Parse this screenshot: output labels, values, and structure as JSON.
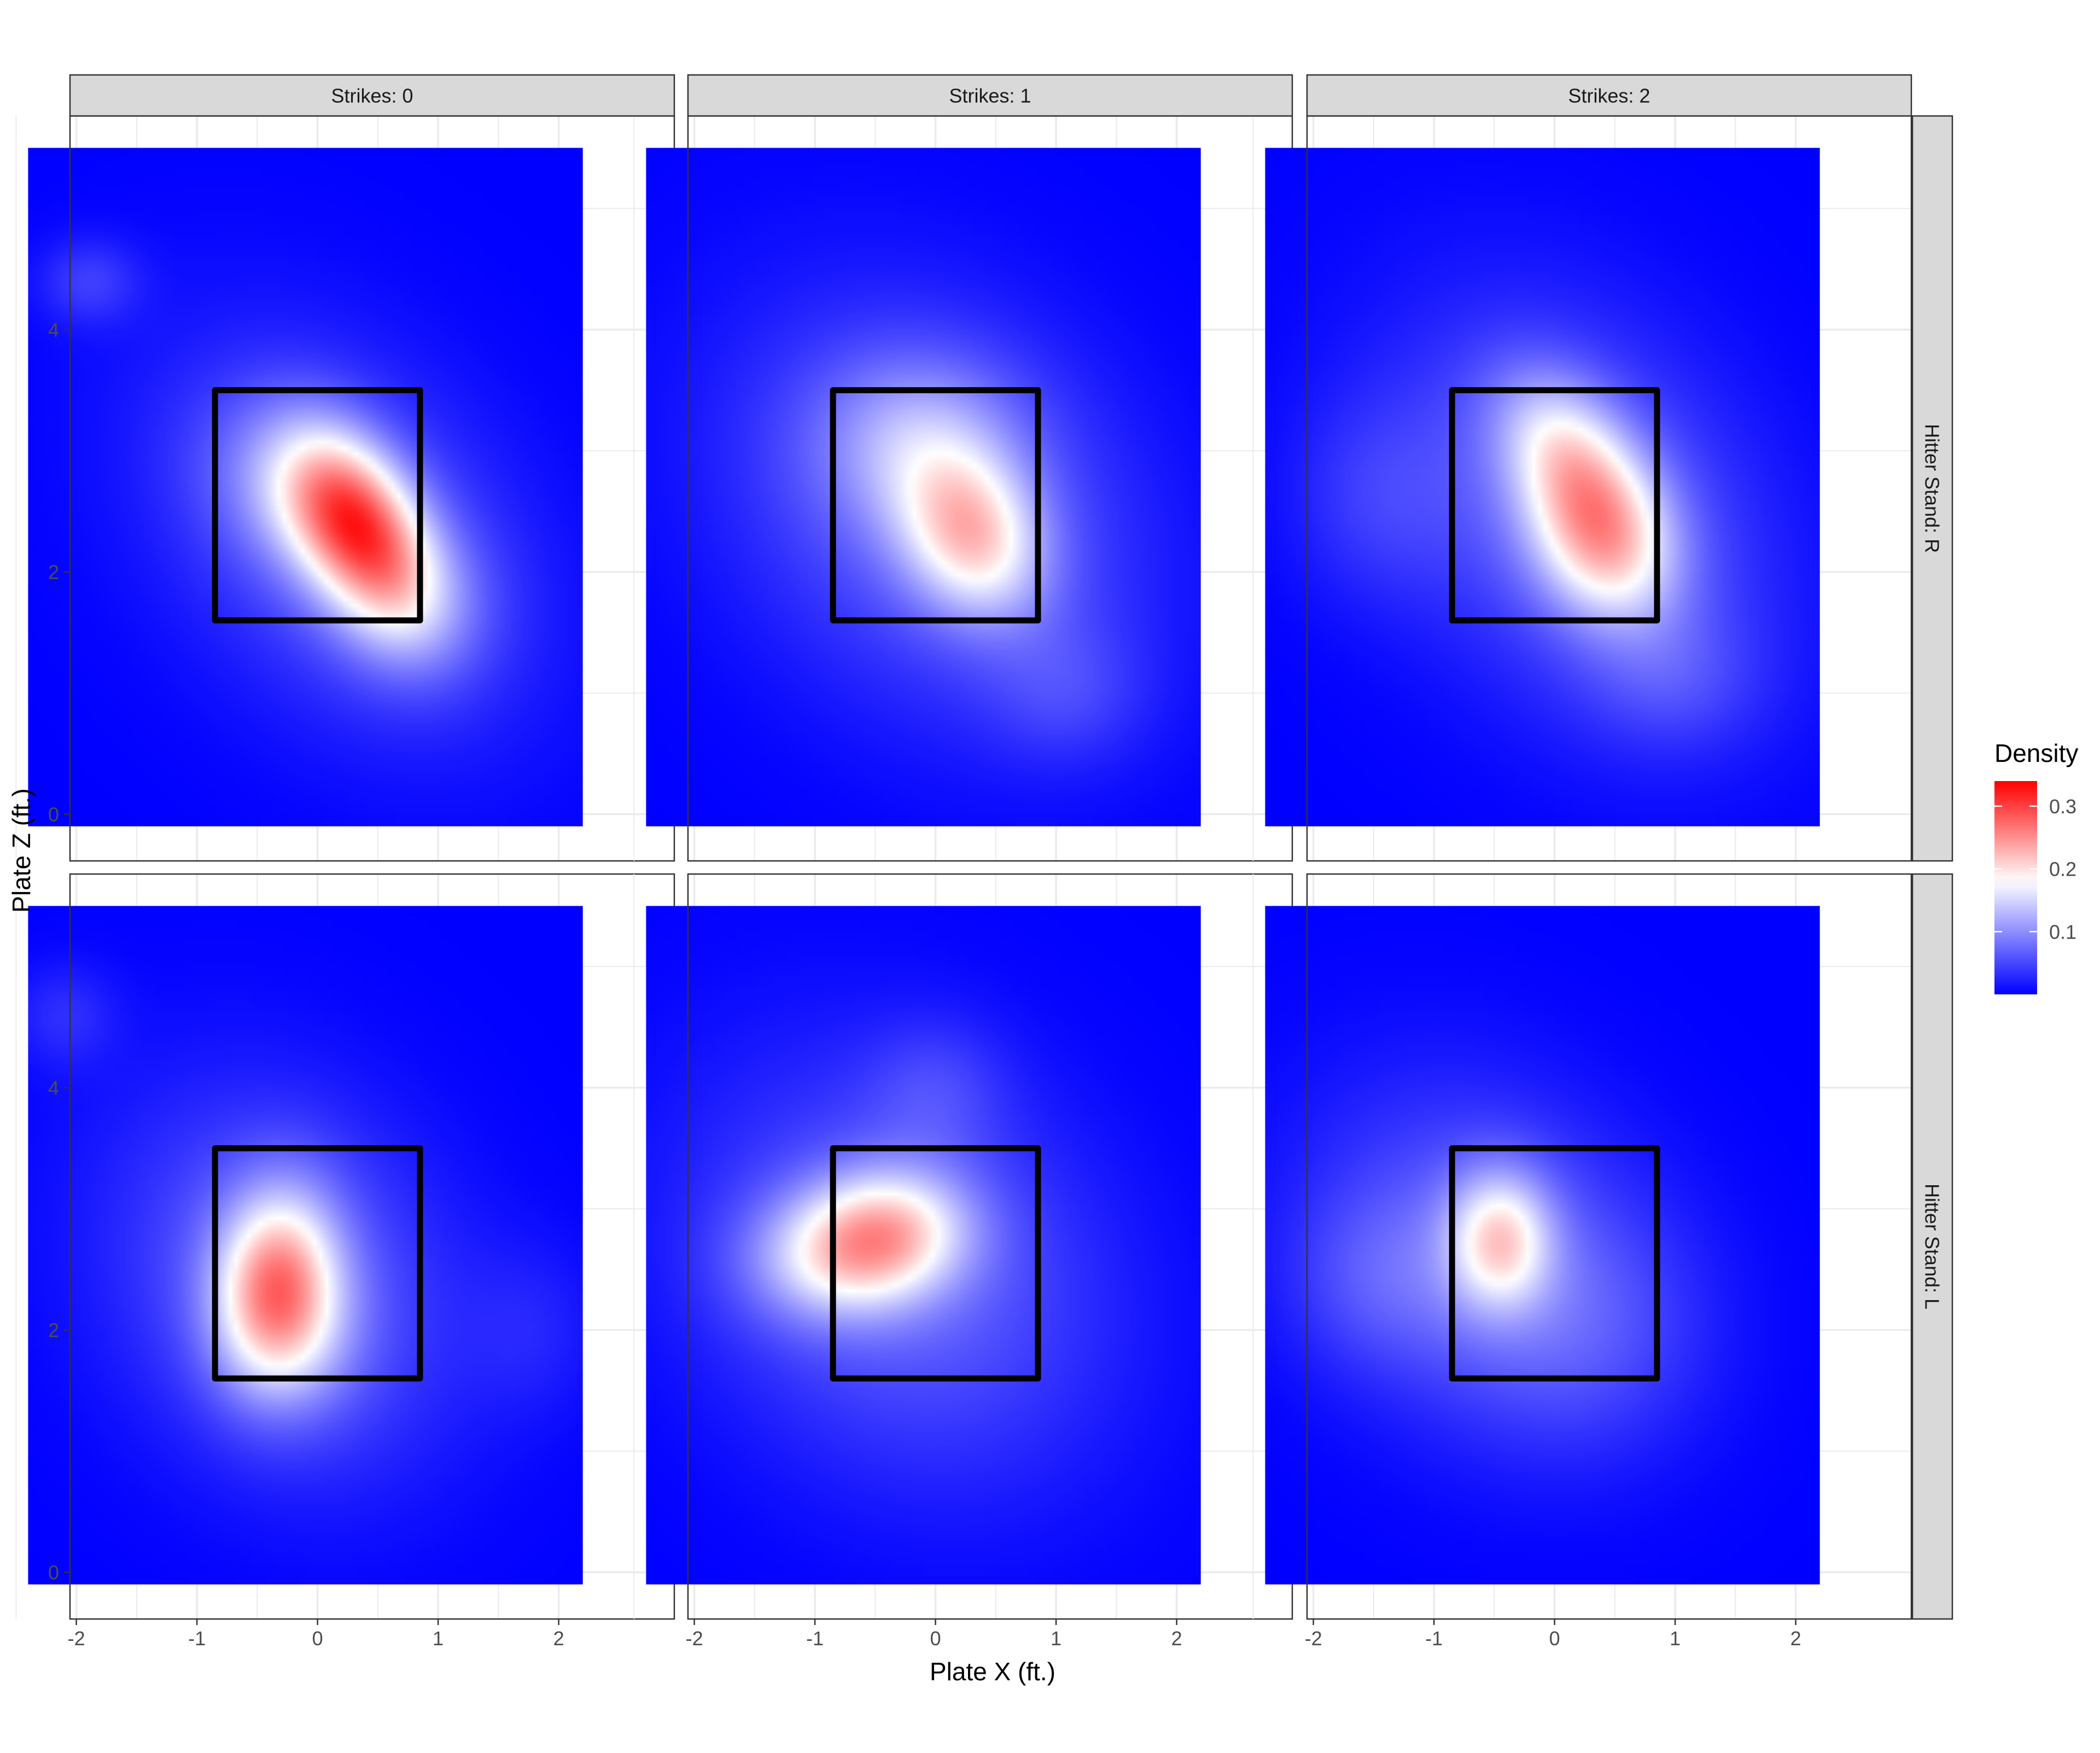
{
  "chart_data": {
    "type": "heatmap",
    "title": "",
    "xlabel": "Plate X (ft.)",
    "ylabel": "Plate Z (ft.)",
    "xlim": [
      -2.4,
      2.2
    ],
    "ylim": [
      -0.1,
      5.5
    ],
    "x_ticks": [
      -2,
      -1,
      0,
      1,
      2
    ],
    "x_tick_labels": [
      "-2",
      "-1",
      "0",
      "1",
      "2"
    ],
    "y_ticks": [
      0,
      2,
      4
    ],
    "y_tick_labels": [
      "0",
      "2",
      "4"
    ],
    "grid": true,
    "facet_columns": [
      "Strikes: 0",
      "Strikes: 1",
      "Strikes: 2"
    ],
    "facet_rows": [
      "Hitter Stand: R",
      "Hitter Stand: L"
    ],
    "strike_zone": {
      "x": [
        -0.85,
        0.85
      ],
      "z": [
        1.6,
        3.5
      ]
    },
    "legend": {
      "title": "Density",
      "position": "right",
      "ticks": [
        0.1,
        0.2,
        0.3
      ],
      "tick_labels": [
        "0.1",
        "0.2",
        "0.3"
      ],
      "range": [
        0.0,
        0.34
      ],
      "colors": {
        "low": "#0000ff",
        "mid": "#ffffff",
        "high": "#ff0000"
      },
      "midpoint": 0.18
    },
    "colors": {
      "strip_fill": "#d9d9d9",
      "panel_border": "#333333",
      "grid": "#ebebeb",
      "zone_line": "#000000"
    },
    "panels": [
      {
        "row": "Hitter Stand: R",
        "col": "Strikes: 0",
        "peak_density": 0.33,
        "hotspots": [
          {
            "x": 0.35,
            "z": 2.35,
            "sx": 0.42,
            "sz": 0.55,
            "rho": -0.45,
            "w": 0.2
          },
          {
            "x": -0.05,
            "z": 2.6,
            "sx": 0.55,
            "sz": 0.5,
            "rho": -0.3,
            "w": 0.08
          },
          {
            "x": 0.8,
            "z": 1.7,
            "sx": 0.45,
            "sz": 0.45,
            "rho": 0,
            "w": 0.05
          },
          {
            "x": 0.2,
            "z": 2.3,
            "sx": 1.1,
            "sz": 1.15,
            "rho": -0.35,
            "w": 0.06
          },
          {
            "x": -1.9,
            "z": 4.4,
            "sx": 0.3,
            "sz": 0.25,
            "rho": 0,
            "w": 0.04
          }
        ]
      },
      {
        "row": "Hitter Stand: R",
        "col": "Strikes: 1",
        "peak_density": 0.27,
        "hotspots": [
          {
            "x": 0.3,
            "z": 2.3,
            "sx": 0.42,
            "sz": 0.48,
            "rho": -0.2,
            "w": 0.15
          },
          {
            "x": -0.15,
            "z": 3.1,
            "sx": 0.6,
            "sz": 0.5,
            "rho": 0,
            "w": 0.07
          },
          {
            "x": 0.0,
            "z": 2.5,
            "sx": 1.2,
            "sz": 1.2,
            "rho": -0.25,
            "w": 0.07
          },
          {
            "x": 1.1,
            "z": 1.0,
            "sx": 0.45,
            "sz": 0.4,
            "rho": 0,
            "w": 0.03
          }
        ]
      },
      {
        "row": "Hitter Stand: R",
        "col": "Strikes: 2",
        "peak_density": 0.3,
        "hotspots": [
          {
            "x": 0.4,
            "z": 2.3,
            "sx": 0.42,
            "sz": 0.5,
            "rho": -0.2,
            "w": 0.17
          },
          {
            "x": 0.05,
            "z": 3.05,
            "sx": 0.4,
            "sz": 0.45,
            "rho": -0.3,
            "w": 0.1
          },
          {
            "x": 0.2,
            "z": 2.5,
            "sx": 1.1,
            "sz": 1.2,
            "rho": -0.3,
            "w": 0.07
          },
          {
            "x": -1.5,
            "z": 2.6,
            "sx": 0.5,
            "sz": 0.6,
            "rho": 0,
            "w": 0.03
          },
          {
            "x": 1.0,
            "z": 1.1,
            "sx": 0.5,
            "sz": 0.4,
            "rho": 0,
            "w": 0.03
          }
        ]
      },
      {
        "row": "Hitter Stand: L",
        "col": "Strikes: 0",
        "peak_density": 0.3,
        "hotspots": [
          {
            "x": -0.35,
            "z": 2.4,
            "sx": 0.35,
            "sz": 0.55,
            "rho": 0.1,
            "w": 0.17
          },
          {
            "x": -0.2,
            "z": 2.0,
            "sx": 0.4,
            "sz": 0.5,
            "rho": 0,
            "w": 0.06
          },
          {
            "x": -0.3,
            "z": 2.4,
            "sx": 1.0,
            "sz": 1.1,
            "rho": -0.2,
            "w": 0.07
          },
          {
            "x": -2.1,
            "z": 4.6,
            "sx": 0.3,
            "sz": 0.3,
            "rho": 0,
            "w": 0.03
          },
          {
            "x": 1.8,
            "z": 2.0,
            "sx": 0.4,
            "sz": 0.5,
            "rho": 0,
            "w": 0.02
          }
        ]
      },
      {
        "row": "Hitter Stand: L",
        "col": "Strikes: 1",
        "peak_density": 0.28,
        "hotspots": [
          {
            "x": -0.7,
            "z": 2.65,
            "sx": 0.55,
            "sz": 0.38,
            "rho": 0.1,
            "w": 0.15
          },
          {
            "x": -0.3,
            "z": 2.9,
            "sx": 0.45,
            "sz": 0.35,
            "rho": 0,
            "w": 0.07
          },
          {
            "x": -0.3,
            "z": 2.5,
            "sx": 1.2,
            "sz": 1.2,
            "rho": -0.2,
            "w": 0.07
          },
          {
            "x": 0.0,
            "z": 4.0,
            "sx": 0.4,
            "sz": 0.4,
            "rho": 0,
            "w": 0.03
          }
        ]
      },
      {
        "row": "Hitter Stand: L",
        "col": "Strikes: 2",
        "peak_density": 0.26,
        "hotspots": [
          {
            "x": -0.45,
            "z": 2.75,
            "sx": 0.3,
            "sz": 0.4,
            "rho": 0,
            "w": 0.14
          },
          {
            "x": -0.6,
            "z": 2.6,
            "sx": 1.0,
            "sz": 1.0,
            "rho": -0.2,
            "w": 0.07
          },
          {
            "x": 0.3,
            "z": 2.0,
            "sx": 0.7,
            "sz": 0.7,
            "rho": 0,
            "w": 0.03
          },
          {
            "x": -1.5,
            "z": 2.4,
            "sx": 0.5,
            "sz": 0.5,
            "rho": 0,
            "w": 0.03
          }
        ]
      }
    ]
  }
}
